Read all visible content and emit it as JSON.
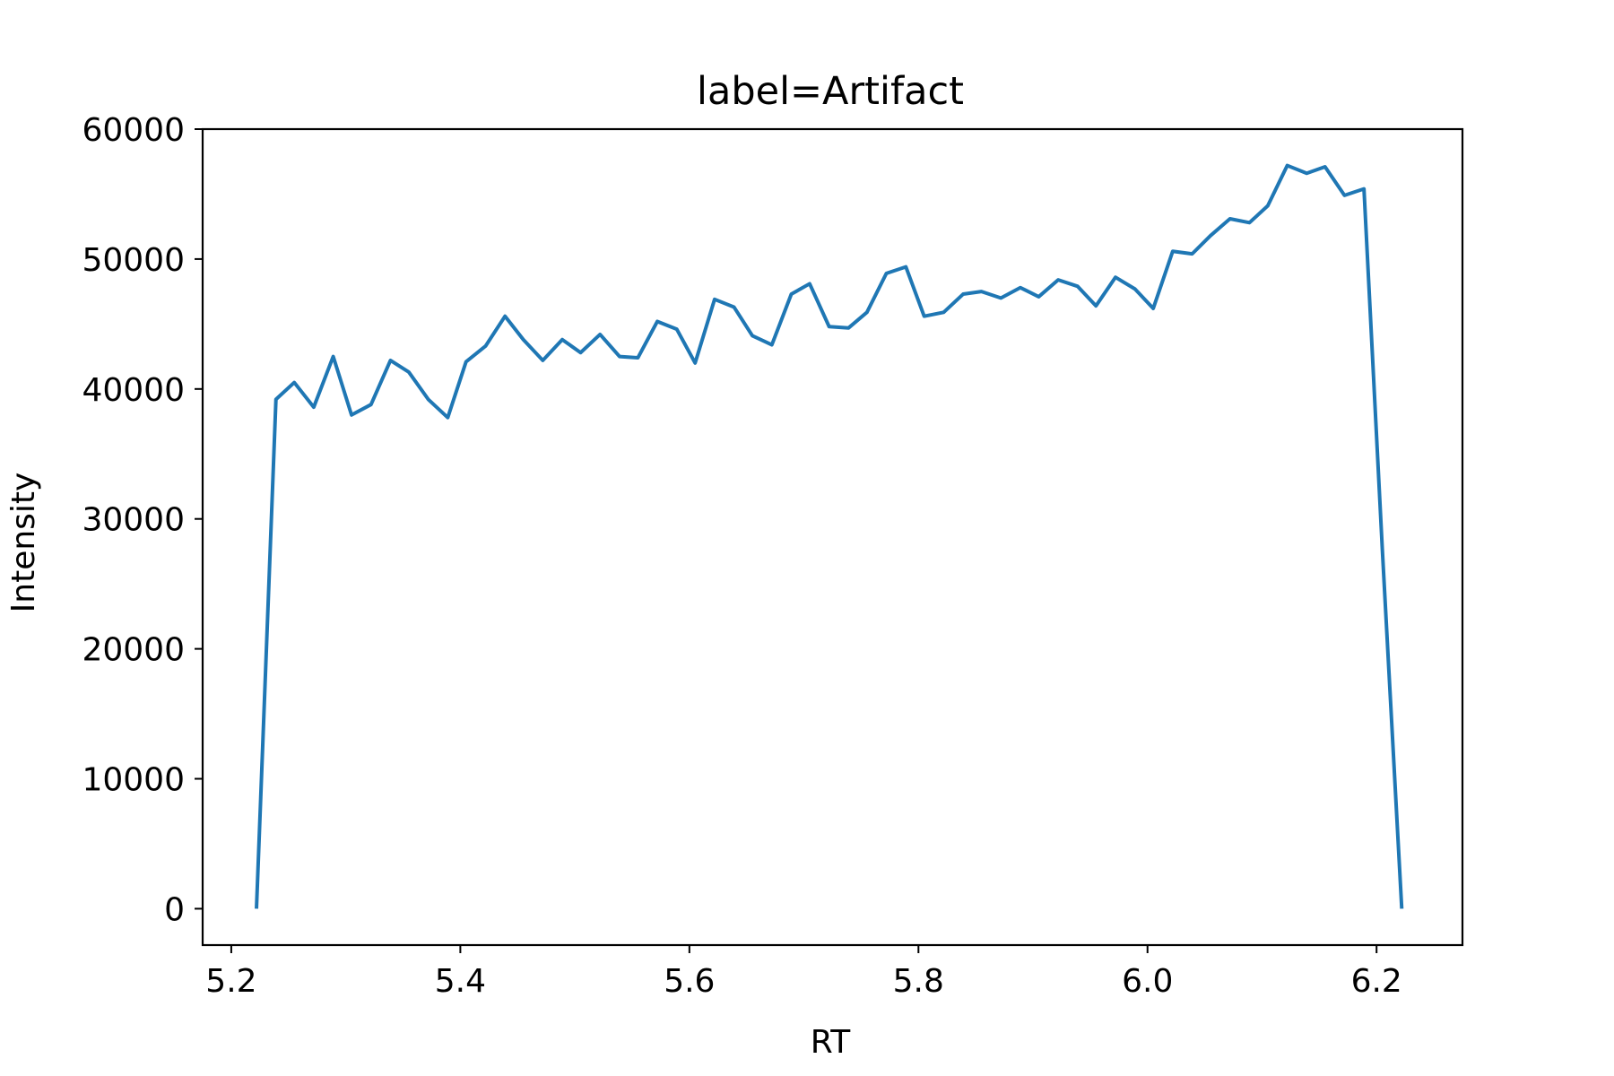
{
  "chart_data": {
    "type": "line",
    "title": "label=Artifact",
    "xlabel": "RT",
    "ylabel": "Intensity",
    "xlim": [
      5.175,
      6.275
    ],
    "ylim": [
      -2800,
      60000
    ],
    "x_ticks": [
      5.2,
      5.4,
      5.6,
      5.8,
      6.0,
      6.2
    ],
    "x_tick_labels": [
      "5.2",
      "5.4",
      "5.6",
      "5.8",
      "6.0",
      "6.2"
    ],
    "y_ticks": [
      0,
      10000,
      20000,
      30000,
      40000,
      50000,
      60000
    ],
    "y_tick_labels": [
      "0",
      "10000",
      "20000",
      "30000",
      "40000",
      "50000",
      "60000"
    ],
    "grid": false,
    "series": [
      {
        "name": "Intensity",
        "color": "#1f77b4",
        "x": [
          5.222,
          5.239,
          5.255,
          5.272,
          5.289,
          5.305,
          5.322,
          5.339,
          5.355,
          5.372,
          5.389,
          5.405,
          5.422,
          5.439,
          5.455,
          5.472,
          5.489,
          5.505,
          5.522,
          5.539,
          5.555,
          5.572,
          5.589,
          5.605,
          5.622,
          5.639,
          5.655,
          5.672,
          5.689,
          5.705,
          5.722,
          5.739,
          5.755,
          5.772,
          5.789,
          5.805,
          5.822,
          5.839,
          5.855,
          5.872,
          5.889,
          5.905,
          5.922,
          5.939,
          5.955,
          5.972,
          5.989,
          6.005,
          6.022,
          6.039,
          6.055,
          6.072,
          6.089,
          6.105,
          6.122,
          6.139,
          6.155,
          6.172,
          6.189,
          6.205,
          6.222
        ],
        "values": [
          0,
          39200,
          40500,
          38600,
          42500,
          38000,
          38800,
          42200,
          41300,
          39200,
          37800,
          42100,
          43300,
          45600,
          43800,
          42200,
          43800,
          42800,
          44200,
          42500,
          42400,
          45200,
          44600,
          42000,
          46900,
          46300,
          44100,
          43400,
          47300,
          48100,
          44800,
          44700,
          45900,
          48900,
          49400,
          45600,
          45900,
          47300,
          47500,
          47000,
          47800,
          47100,
          48400,
          47900,
          46400,
          48600,
          47700,
          46200,
          50600,
          50400,
          51800,
          53100,
          52800,
          54100,
          57200,
          56600,
          57100,
          54900,
          55400,
          27700,
          0
        ]
      }
    ]
  }
}
